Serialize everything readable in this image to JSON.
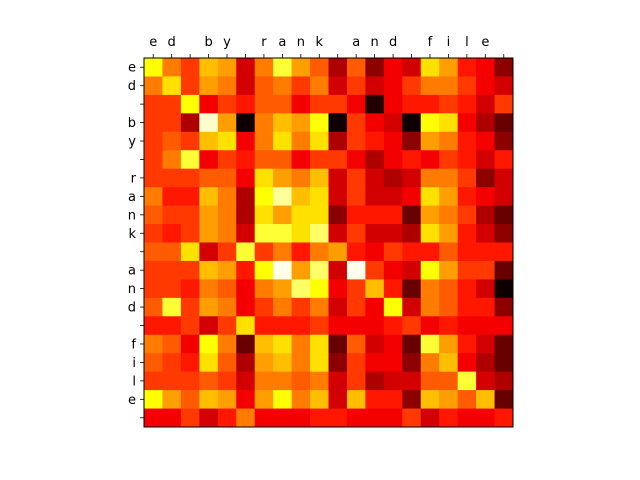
{
  "chart_data": {
    "type": "heatmap",
    "colormap": "hot",
    "vmin": 0,
    "vmax": 1,
    "x_tick_labels": [
      "e",
      "d",
      " ",
      "b",
      "y",
      " ",
      "r",
      "a",
      "n",
      "k",
      " ",
      "a",
      "n",
      "d",
      " ",
      "f",
      "i",
      "l",
      "e",
      " "
    ],
    "y_tick_labels": [
      "e",
      "d",
      " ",
      "b",
      "y",
      " ",
      "r",
      "a",
      "n",
      "k",
      " ",
      "a",
      "n",
      "d",
      " ",
      "f",
      "i",
      "l",
      "e",
      " "
    ],
    "x_ticks_position": "top",
    "grid": false,
    "matrix": [
      [
        0.75,
        0.55,
        0.45,
        0.65,
        0.6,
        0.3,
        0.55,
        0.8,
        0.6,
        0.5,
        0.25,
        0.5,
        0.2,
        0.35,
        0.3,
        0.7,
        0.6,
        0.4,
        0.35,
        0.2
      ],
      [
        0.55,
        0.7,
        0.45,
        0.6,
        0.55,
        0.3,
        0.5,
        0.55,
        0.45,
        0.55,
        0.3,
        0.45,
        0.3,
        0.35,
        0.45,
        0.55,
        0.55,
        0.45,
        0.35,
        0.3
      ],
      [
        0.45,
        0.45,
        0.75,
        0.35,
        0.45,
        0.4,
        0.5,
        0.5,
        0.35,
        0.45,
        0.45,
        0.35,
        0.05,
        0.35,
        0.4,
        0.4,
        0.45,
        0.4,
        0.3,
        0.45
      ],
      [
        0.45,
        0.45,
        0.25,
        0.95,
        0.6,
        0.02,
        0.55,
        0.65,
        0.6,
        0.75,
        0.02,
        0.45,
        0.35,
        0.3,
        0.02,
        0.75,
        0.7,
        0.35,
        0.25,
        0.15
      ],
      [
        0.45,
        0.5,
        0.45,
        0.65,
        0.7,
        0.35,
        0.55,
        0.7,
        0.55,
        0.7,
        0.25,
        0.45,
        0.4,
        0.35,
        0.2,
        0.6,
        0.55,
        0.4,
        0.35,
        0.2
      ],
      [
        0.45,
        0.55,
        0.8,
        0.35,
        0.45,
        0.4,
        0.5,
        0.5,
        0.35,
        0.45,
        0.45,
        0.35,
        0.25,
        0.35,
        0.4,
        0.35,
        0.45,
        0.4,
        0.3,
        0.4
      ],
      [
        0.45,
        0.45,
        0.45,
        0.5,
        0.5,
        0.35,
        0.7,
        0.6,
        0.55,
        0.65,
        0.3,
        0.45,
        0.3,
        0.25,
        0.3,
        0.55,
        0.55,
        0.45,
        0.2,
        0.3
      ],
      [
        0.55,
        0.4,
        0.4,
        0.65,
        0.55,
        0.25,
        0.75,
        0.9,
        0.65,
        0.7,
        0.3,
        0.45,
        0.3,
        0.3,
        0.35,
        0.7,
        0.6,
        0.4,
        0.35,
        0.3
      ],
      [
        0.5,
        0.45,
        0.45,
        0.6,
        0.55,
        0.25,
        0.7,
        0.6,
        0.7,
        0.7,
        0.2,
        0.4,
        0.4,
        0.4,
        0.15,
        0.6,
        0.55,
        0.45,
        0.25,
        0.15
      ],
      [
        0.45,
        0.4,
        0.45,
        0.6,
        0.55,
        0.3,
        0.8,
        0.8,
        0.7,
        0.85,
        0.3,
        0.45,
        0.3,
        0.3,
        0.25,
        0.7,
        0.6,
        0.4,
        0.3,
        0.2
      ],
      [
        0.5,
        0.5,
        0.7,
        0.3,
        0.45,
        0.8,
        0.45,
        0.55,
        0.4,
        0.55,
        0.6,
        0.4,
        0.35,
        0.45,
        0.4,
        0.4,
        0.5,
        0.4,
        0.4,
        0.4
      ],
      [
        0.45,
        0.45,
        0.45,
        0.65,
        0.6,
        0.4,
        0.75,
        0.98,
        0.6,
        0.85,
        0.3,
        0.98,
        0.45,
        0.35,
        0.3,
        0.75,
        0.6,
        0.45,
        0.45,
        0.15
      ],
      [
        0.45,
        0.45,
        0.4,
        0.55,
        0.5,
        0.35,
        0.55,
        0.6,
        0.85,
        0.75,
        0.35,
        0.45,
        0.65,
        0.4,
        0.15,
        0.55,
        0.5,
        0.4,
        0.3,
        0.02
      ],
      [
        0.5,
        0.8,
        0.45,
        0.6,
        0.55,
        0.35,
        0.45,
        0.55,
        0.45,
        0.55,
        0.3,
        0.45,
        0.35,
        0.75,
        0.3,
        0.55,
        0.5,
        0.4,
        0.4,
        0.2
      ],
      [
        0.4,
        0.4,
        0.45,
        0.3,
        0.45,
        0.7,
        0.4,
        0.4,
        0.4,
        0.45,
        0.35,
        0.35,
        0.35,
        0.4,
        0.45,
        0.35,
        0.4,
        0.35,
        0.35,
        0.35
      ],
      [
        0.55,
        0.5,
        0.35,
        0.75,
        0.55,
        0.15,
        0.65,
        0.7,
        0.55,
        0.7,
        0.15,
        0.5,
        0.3,
        0.35,
        0.15,
        0.8,
        0.6,
        0.4,
        0.3,
        0.15
      ],
      [
        0.5,
        0.45,
        0.4,
        0.7,
        0.5,
        0.25,
        0.6,
        0.65,
        0.55,
        0.7,
        0.2,
        0.45,
        0.35,
        0.35,
        0.2,
        0.55,
        0.65,
        0.35,
        0.25,
        0.15
      ],
      [
        0.45,
        0.45,
        0.45,
        0.5,
        0.45,
        0.3,
        0.55,
        0.55,
        0.5,
        0.55,
        0.3,
        0.45,
        0.25,
        0.3,
        0.3,
        0.5,
        0.5,
        0.8,
        0.3,
        0.25
      ],
      [
        0.75,
        0.6,
        0.5,
        0.65,
        0.6,
        0.35,
        0.6,
        0.75,
        0.55,
        0.65,
        0.3,
        0.65,
        0.4,
        0.4,
        0.2,
        0.65,
        0.6,
        0.5,
        0.65,
        0.15
      ],
      [
        0.35,
        0.35,
        0.45,
        0.3,
        0.4,
        0.55,
        0.35,
        0.35,
        0.35,
        0.4,
        0.4,
        0.35,
        0.35,
        0.35,
        0.45,
        0.3,
        0.4,
        0.35,
        0.35,
        0.4
      ]
    ]
  }
}
